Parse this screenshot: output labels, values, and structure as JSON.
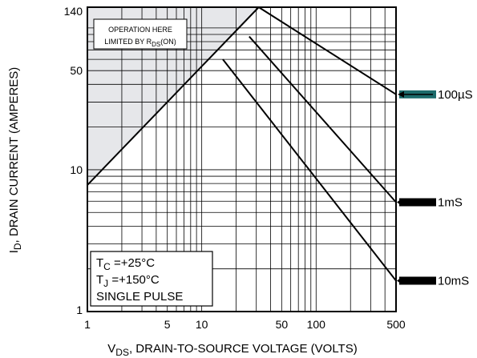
{
  "chart_data": {
    "type": "line",
    "xscale": "log",
    "yscale": "log",
    "xlim": [
      1,
      500
    ],
    "ylim": [
      1,
      140
    ],
    "grid": true,
    "xlabel": {
      "prefix": "V",
      "sub": "DS",
      "rest": ", DRAIN-TO-SOURCE VOLTAGE (VOLTS)"
    },
    "ylabel": {
      "prefix": "I",
      "sub": "D",
      "rest": ", DRAIN CURRENT (AMPERES)"
    },
    "x_ticks": [
      {
        "value": 1,
        "label": "1"
      },
      {
        "value": 5,
        "label": "5"
      },
      {
        "value": 10,
        "label": "10"
      },
      {
        "value": 50,
        "label": "50"
      },
      {
        "value": 100,
        "label": "100"
      },
      {
        "value": 500,
        "label": "500"
      }
    ],
    "y_ticks": [
      {
        "value": 1,
        "label": "1"
      },
      {
        "value": 10,
        "label": "10"
      },
      {
        "value": 50,
        "label": "50"
      },
      {
        "value": 140,
        "label": "140"
      }
    ],
    "rds_on_limit": {
      "x": [
        1,
        31.5
      ],
      "y": [
        7.8,
        140
      ]
    },
    "series": [
      {
        "name": "100µS",
        "color": "#1d6b6b",
        "x": [
          31.5,
          500
        ],
        "y": [
          140,
          34
        ]
      },
      {
        "name": "1mS",
        "color": "#000000",
        "x": [
          26,
          500
        ],
        "y": [
          87,
          5.9
        ]
      },
      {
        "name": "10mS",
        "color": "#000000",
        "x": [
          15.3,
          500
        ],
        "y": [
          60,
          1.65
        ]
      }
    ],
    "annotations": {
      "region": {
        "line1": "OPERATION HERE",
        "line2_prefix": "LIMITED BY R",
        "line2_sub": "DS",
        "line2_rest": "(ON)"
      },
      "conditions": [
        {
          "prefix": "T",
          "sub": "C",
          "rest": " =+25°C"
        },
        {
          "prefix": "T",
          "sub": "J",
          "rest": " =+150°C"
        },
        {
          "prefix": "SINGLE PULSE",
          "sub": "",
          "rest": ""
        }
      ]
    }
  }
}
